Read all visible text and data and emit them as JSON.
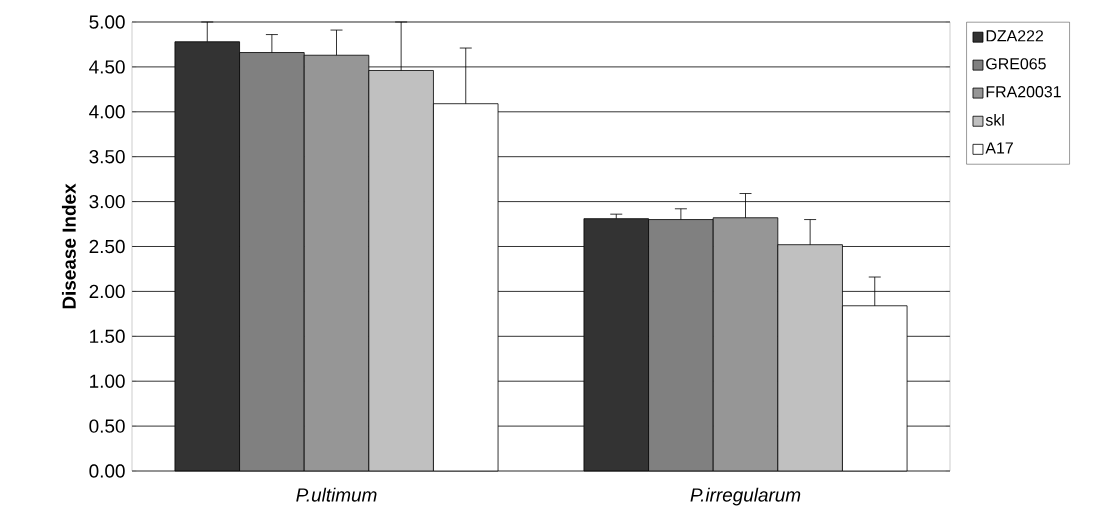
{
  "chart_data": {
    "type": "bar",
    "ylabel": "Disease Index",
    "categories": [
      "P.ultimum",
      "P.irregularum"
    ],
    "series": [
      {
        "name": "DZA222",
        "color": "#333333",
        "values": [
          4.78,
          2.81
        ],
        "errors": [
          0.22,
          0.05
        ]
      },
      {
        "name": "GRE065",
        "color": "#808080",
        "values": [
          4.66,
          2.8
        ],
        "errors": [
          0.2,
          0.12
        ]
      },
      {
        "name": "FRA20031",
        "color": "#969696",
        "values": [
          4.63,
          2.82
        ],
        "errors": [
          0.28,
          0.27
        ]
      },
      {
        "name": "skl",
        "color": "#c0c0c0",
        "values": [
          4.46,
          2.52
        ],
        "errors": [
          0.54,
          0.28
        ]
      },
      {
        "name": "A17",
        "color": "#ffffff",
        "values": [
          4.09,
          1.84
        ],
        "errors": [
          0.62,
          0.32
        ]
      }
    ],
    "ylim": [
      0,
      5
    ],
    "yticks": [
      {
        "value": 0,
        "label": "0.00"
      },
      {
        "value": 0.5,
        "label": "0.50"
      },
      {
        "value": 1,
        "label": "1.00"
      },
      {
        "value": 1.5,
        "label": "1.50"
      },
      {
        "value": 2,
        "label": "2.00"
      },
      {
        "value": 2.5,
        "label": "2.50"
      },
      {
        "value": 3,
        "label": "3.00"
      },
      {
        "value": 3.5,
        "label": "3.50"
      },
      {
        "value": 4,
        "label": "4.00"
      },
      {
        "value": 4.5,
        "label": "4.50"
      },
      {
        "value": 5,
        "label": "5.00"
      }
    ],
    "grid": "y",
    "legend": "right"
  }
}
